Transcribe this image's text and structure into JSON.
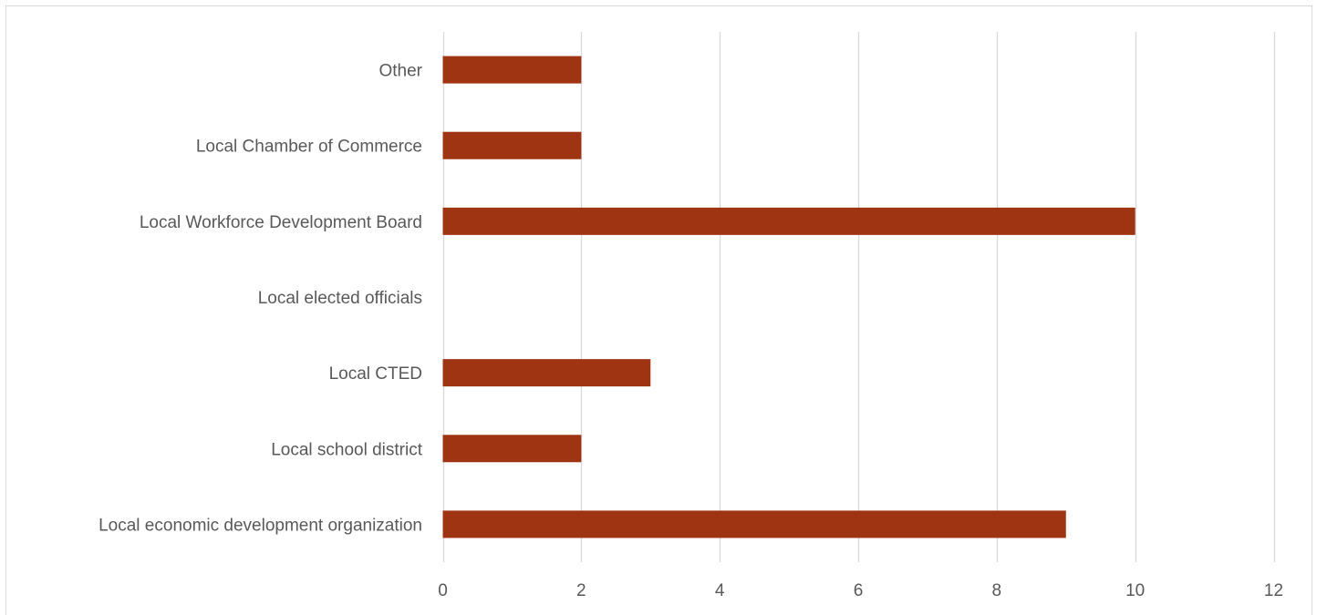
{
  "chart_data": {
    "type": "bar",
    "orientation": "horizontal",
    "title": "",
    "xlabel": "",
    "ylabel": "",
    "categories": [
      "Local economic development organization",
      "Local school district",
      "Local CTED",
      "Local elected officials",
      "Local Workforce Development Board",
      "Local Chamber of Commerce",
      "Other"
    ],
    "values": [
      9,
      2,
      3,
      0,
      10,
      2,
      2
    ],
    "xlim": [
      0,
      12
    ],
    "xticks": [
      0,
      2,
      4,
      6,
      8,
      10,
      12
    ],
    "grid": "vertical",
    "legend": "none",
    "bar_color": "#9e3411",
    "grid_color": "#d9d9d9",
    "text_color": "#595959"
  }
}
